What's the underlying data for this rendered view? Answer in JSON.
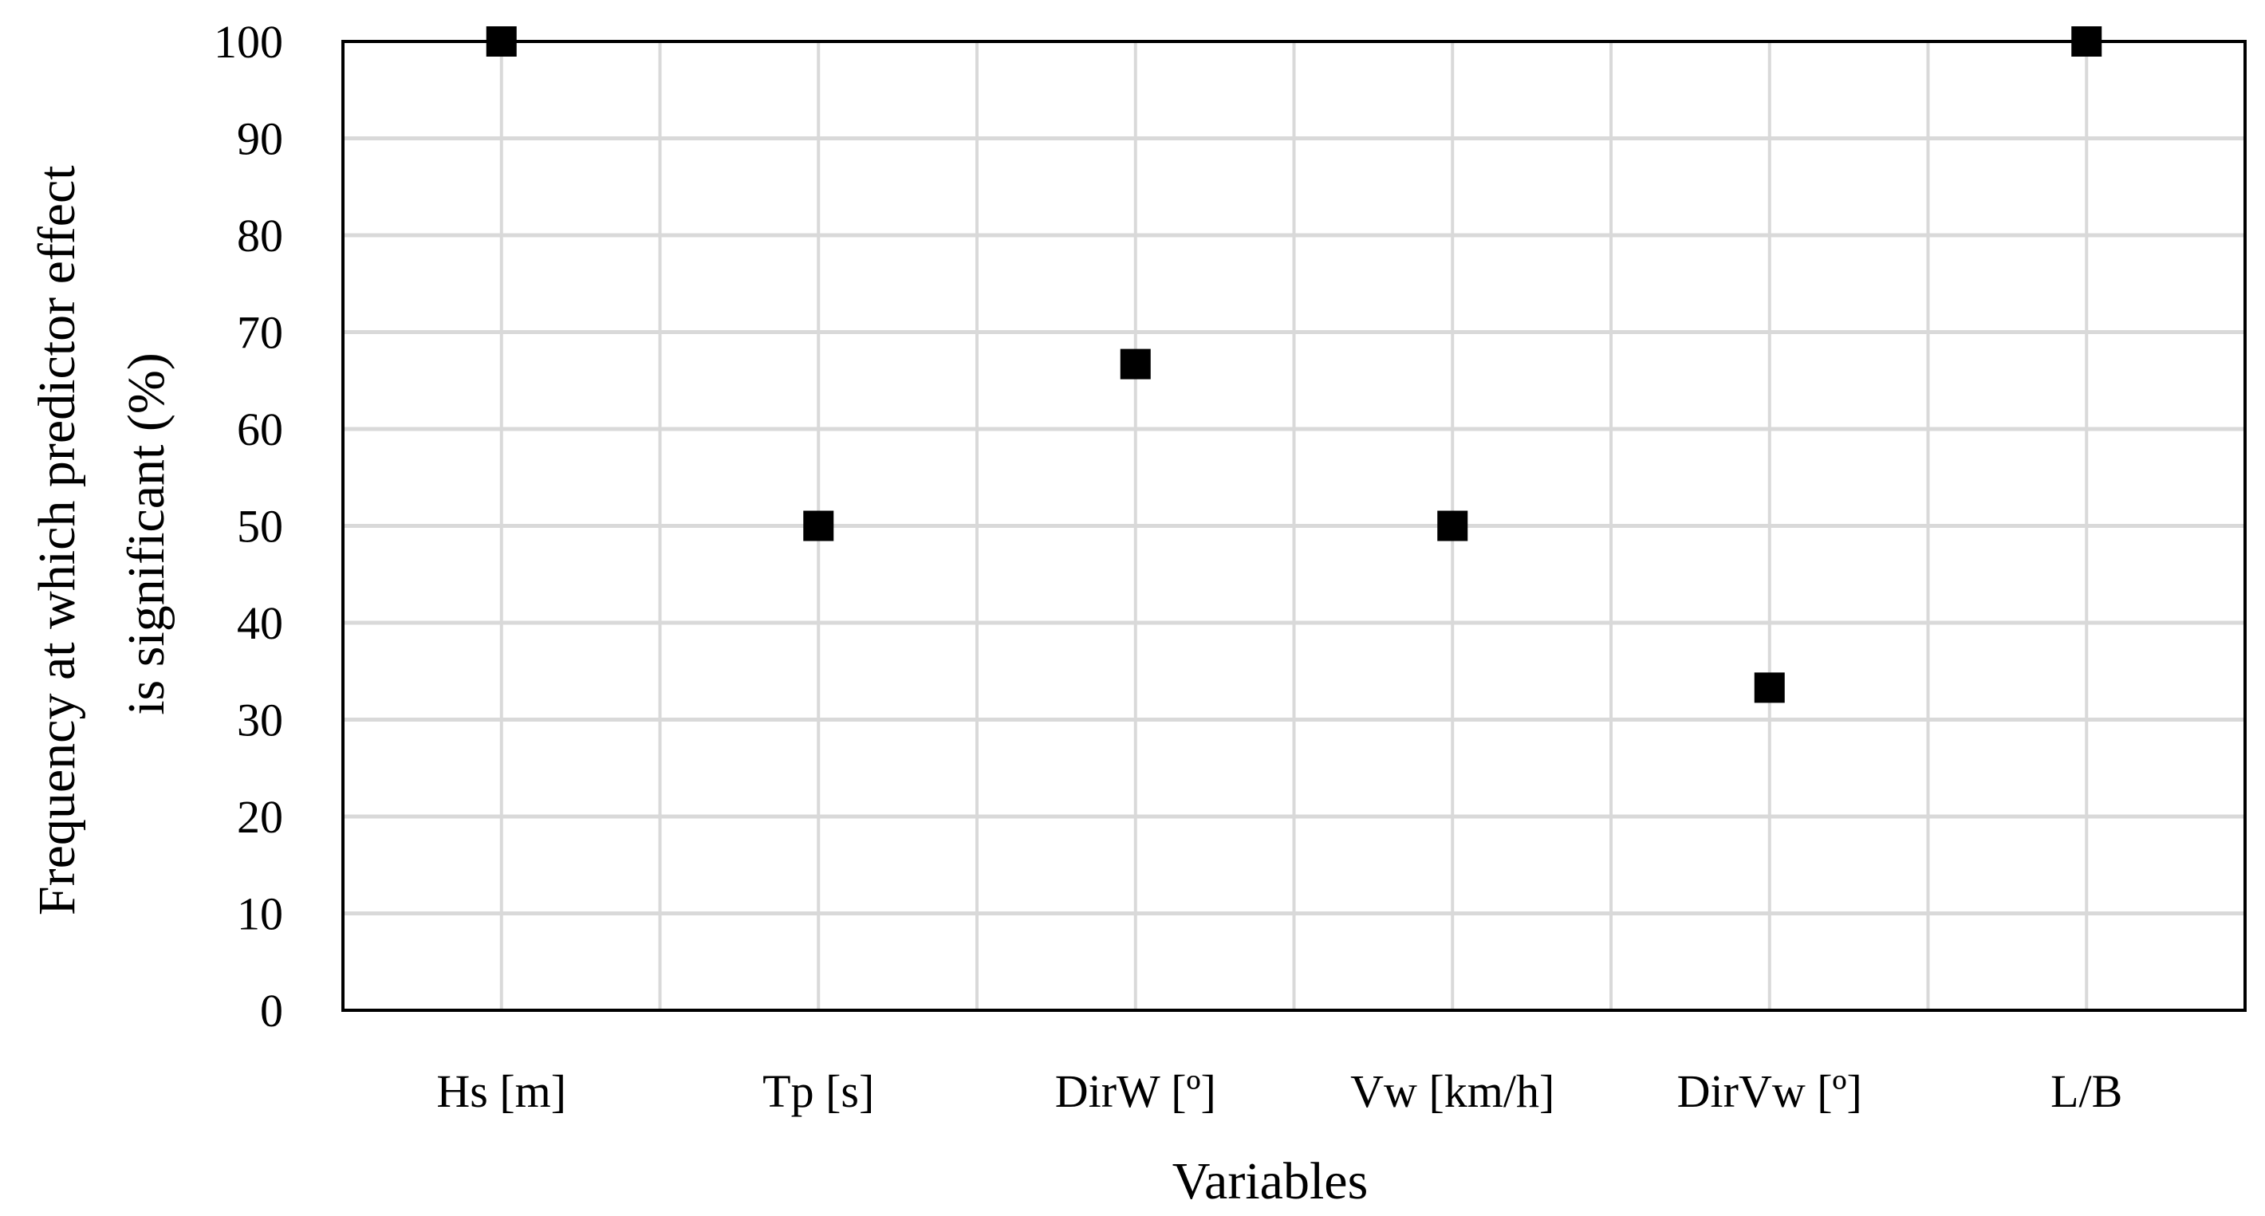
{
  "chart_data": {
    "type": "scatter",
    "categories": [
      "Hs [m]",
      "Tp [s]",
      "DirW [º]",
      "Vw [km/h]",
      "DirVw [º]",
      "L/B"
    ],
    "values": [
      100,
      50,
      66.7,
      50,
      33.3,
      100
    ],
    "xlabel": "Variables",
    "ylabel_lines": [
      "Frequency at which predictor effect",
      "is significant (%)"
    ],
    "ylim": [
      0,
      100
    ],
    "yticks": [
      0,
      10,
      20,
      30,
      40,
      50,
      60,
      70,
      80,
      90,
      100
    ],
    "grid": true,
    "marker": "square",
    "marker_color": "#000000",
    "grid_color": "#d9d9d9"
  }
}
